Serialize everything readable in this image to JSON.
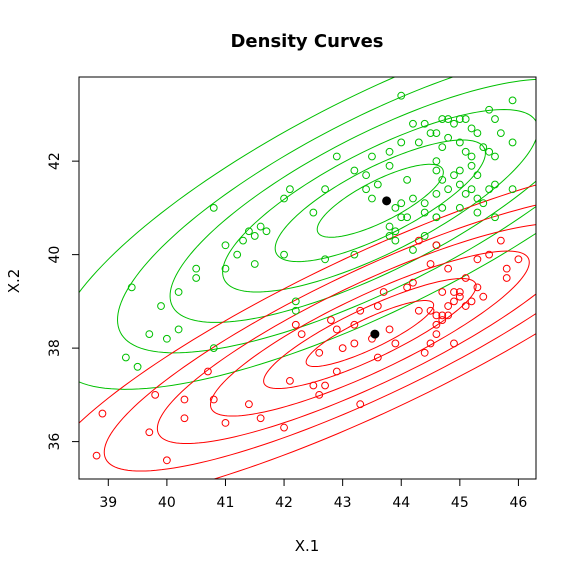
{
  "chart_data": {
    "type": "scatter",
    "title": "Density Curves",
    "xlabel": "X.1",
    "ylabel": "X.2",
    "xlim": [
      38.5,
      46.3
    ],
    "ylim": [
      35.2,
      43.8
    ],
    "x_ticks": [
      39,
      40,
      41,
      42,
      43,
      44,
      45,
      46
    ],
    "y_ticks": [
      36,
      38,
      40,
      42
    ],
    "grid": false,
    "legend": "none",
    "series": [
      {
        "color": "#00c000",
        "points": [
          [
            43.5,
            42.1
          ],
          [
            43.8,
            42.2
          ],
          [
            44.0,
            43.4
          ],
          [
            44.2,
            42.8
          ],
          [
            44.4,
            42.8
          ],
          [
            44.5,
            42.6
          ],
          [
            44.6,
            42.6
          ],
          [
            44.7,
            42.9
          ],
          [
            44.8,
            42.9
          ],
          [
            44.8,
            42.5
          ],
          [
            44.9,
            42.8
          ],
          [
            45.0,
            42.9
          ],
          [
            45.1,
            42.9
          ],
          [
            45.2,
            42.7
          ],
          [
            45.3,
            42.6
          ],
          [
            45.5,
            43.1
          ],
          [
            45.6,
            42.9
          ],
          [
            45.7,
            42.6
          ],
          [
            45.9,
            42.4
          ],
          [
            45.9,
            43.3
          ],
          [
            45.0,
            42.4
          ],
          [
            45.1,
            42.2
          ],
          [
            45.2,
            42.1
          ],
          [
            45.4,
            42.3
          ],
          [
            45.5,
            42.2
          ],
          [
            45.6,
            42.1
          ],
          [
            44.0,
            42.4
          ],
          [
            44.3,
            42.4
          ],
          [
            44.7,
            42.3
          ],
          [
            45.2,
            41.9
          ],
          [
            45.3,
            41.7
          ],
          [
            45.6,
            41.5
          ],
          [
            45.0,
            41.8
          ],
          [
            44.6,
            42.0
          ],
          [
            44.6,
            41.8
          ],
          [
            44.7,
            41.6
          ],
          [
            44.8,
            41.4
          ],
          [
            44.9,
            41.7
          ],
          [
            45.0,
            41.5
          ],
          [
            45.1,
            41.3
          ],
          [
            45.3,
            41.2
          ],
          [
            45.4,
            41.1
          ],
          [
            45.5,
            41.4
          ],
          [
            45.2,
            41.4
          ],
          [
            44.6,
            41.3
          ],
          [
            44.4,
            41.1
          ],
          [
            43.8,
            41.9
          ],
          [
            43.9,
            41.0
          ],
          [
            44.0,
            41.1
          ],
          [
            44.1,
            41.6
          ],
          [
            44.2,
            41.2
          ],
          [
            44.4,
            40.9
          ],
          [
            44.6,
            40.8
          ],
          [
            44.7,
            41.0
          ],
          [
            45.0,
            41.0
          ],
          [
            45.3,
            40.9
          ],
          [
            45.6,
            40.8
          ],
          [
            45.9,
            41.4
          ],
          [
            44.0,
            40.8
          ],
          [
            44.1,
            40.8
          ],
          [
            44.2,
            40.1
          ],
          [
            44.4,
            40.4
          ],
          [
            44.6,
            40.2
          ],
          [
            43.8,
            40.6
          ],
          [
            43.8,
            40.4
          ],
          [
            43.9,
            40.5
          ],
          [
            43.9,
            40.3
          ],
          [
            43.4,
            41.7
          ],
          [
            43.5,
            41.2
          ],
          [
            43.4,
            41.4
          ],
          [
            43.6,
            41.5
          ],
          [
            43.2,
            41.8
          ],
          [
            42.9,
            42.1
          ],
          [
            42.7,
            41.4
          ],
          [
            42.5,
            40.9
          ],
          [
            42.1,
            41.4
          ],
          [
            42.0,
            41.2
          ],
          [
            41.4,
            40.5
          ],
          [
            41.5,
            40.4
          ],
          [
            41.6,
            40.6
          ],
          [
            41.7,
            40.5
          ],
          [
            41.3,
            40.3
          ],
          [
            41.2,
            40.0
          ],
          [
            41.0,
            40.2
          ],
          [
            40.8,
            41.0
          ],
          [
            41.0,
            39.7
          ],
          [
            40.5,
            39.7
          ],
          [
            40.5,
            39.5
          ],
          [
            40.2,
            39.2
          ],
          [
            39.9,
            38.9
          ],
          [
            39.7,
            38.3
          ],
          [
            39.4,
            39.3
          ],
          [
            39.3,
            37.8
          ],
          [
            39.5,
            37.6
          ],
          [
            40.0,
            38.2
          ],
          [
            40.2,
            38.4
          ],
          [
            40.8,
            38.0
          ],
          [
            41.5,
            39.8
          ],
          [
            42.2,
            39.0
          ],
          [
            42.2,
            38.8
          ],
          [
            42.7,
            39.9
          ],
          [
            42.0,
            40.0
          ],
          [
            43.2,
            40.0
          ],
          [
            44.6,
            40.8
          ]
        ]
      },
      {
        "color": "#ff0000",
        "points": [
          [
            38.8,
            35.7
          ],
          [
            38.9,
            36.6
          ],
          [
            39.7,
            36.2
          ],
          [
            39.8,
            37.0
          ],
          [
            40.0,
            35.6
          ],
          [
            40.3,
            36.9
          ],
          [
            40.3,
            36.5
          ],
          [
            40.7,
            37.5
          ],
          [
            40.8,
            36.9
          ],
          [
            41.0,
            36.4
          ],
          [
            41.4,
            36.8
          ],
          [
            41.6,
            36.5
          ],
          [
            42.0,
            36.3
          ],
          [
            42.1,
            37.3
          ],
          [
            42.5,
            37.2
          ],
          [
            42.6,
            37.0
          ],
          [
            42.7,
            37.2
          ],
          [
            42.9,
            37.5
          ],
          [
            43.3,
            36.8
          ],
          [
            43.6,
            37.8
          ],
          [
            42.6,
            37.9
          ],
          [
            42.2,
            38.5
          ],
          [
            42.3,
            38.3
          ],
          [
            42.8,
            38.6
          ],
          [
            42.9,
            38.4
          ],
          [
            43.2,
            38.5
          ],
          [
            43.3,
            38.8
          ],
          [
            43.2,
            38.1
          ],
          [
            43.5,
            38.2
          ],
          [
            43.8,
            38.4
          ],
          [
            43.9,
            38.1
          ],
          [
            44.1,
            39.3
          ],
          [
            44.2,
            39.4
          ],
          [
            44.3,
            38.8
          ],
          [
            44.5,
            38.8
          ],
          [
            44.6,
            38.5
          ],
          [
            44.6,
            38.3
          ],
          [
            44.7,
            38.7
          ],
          [
            44.8,
            38.9
          ],
          [
            44.9,
            38.1
          ],
          [
            44.4,
            37.9
          ],
          [
            44.5,
            38.1
          ],
          [
            44.6,
            38.7
          ],
          [
            44.7,
            38.6
          ],
          [
            44.8,
            38.7
          ],
          [
            44.9,
            39.0
          ],
          [
            45.0,
            39.2
          ],
          [
            45.1,
            38.9
          ],
          [
            45.2,
            39.0
          ],
          [
            45.3,
            39.3
          ],
          [
            45.4,
            39.1
          ],
          [
            45.1,
            39.5
          ],
          [
            45.3,
            39.9
          ],
          [
            45.5,
            40.0
          ],
          [
            45.7,
            40.3
          ],
          [
            45.8,
            39.5
          ],
          [
            46.0,
            39.9
          ],
          [
            44.7,
            39.2
          ],
          [
            44.9,
            39.2
          ],
          [
            45.0,
            39.1
          ],
          [
            44.5,
            39.8
          ],
          [
            44.8,
            39.7
          ],
          [
            44.3,
            40.3
          ],
          [
            44.6,
            40.2
          ],
          [
            43.6,
            38.9
          ],
          [
            43.7,
            39.2
          ],
          [
            43.0,
            38.0
          ],
          [
            45.8,
            39.7
          ]
        ]
      }
    ],
    "means": [
      {
        "x": 43.75,
        "y": 41.15,
        "color": "#000000"
      },
      {
        "x": 43.55,
        "y": 38.3,
        "color": "#000000"
      }
    ],
    "density_contours": [
      {
        "color": "#00c000",
        "levels": [
          0.6,
          1.0,
          1.5,
          2.0,
          2.5,
          3.1
        ]
      },
      {
        "color": "#ff0000",
        "levels": [
          0.6,
          1.0,
          1.5,
          2.0,
          2.5,
          3.1
        ]
      }
    ]
  }
}
